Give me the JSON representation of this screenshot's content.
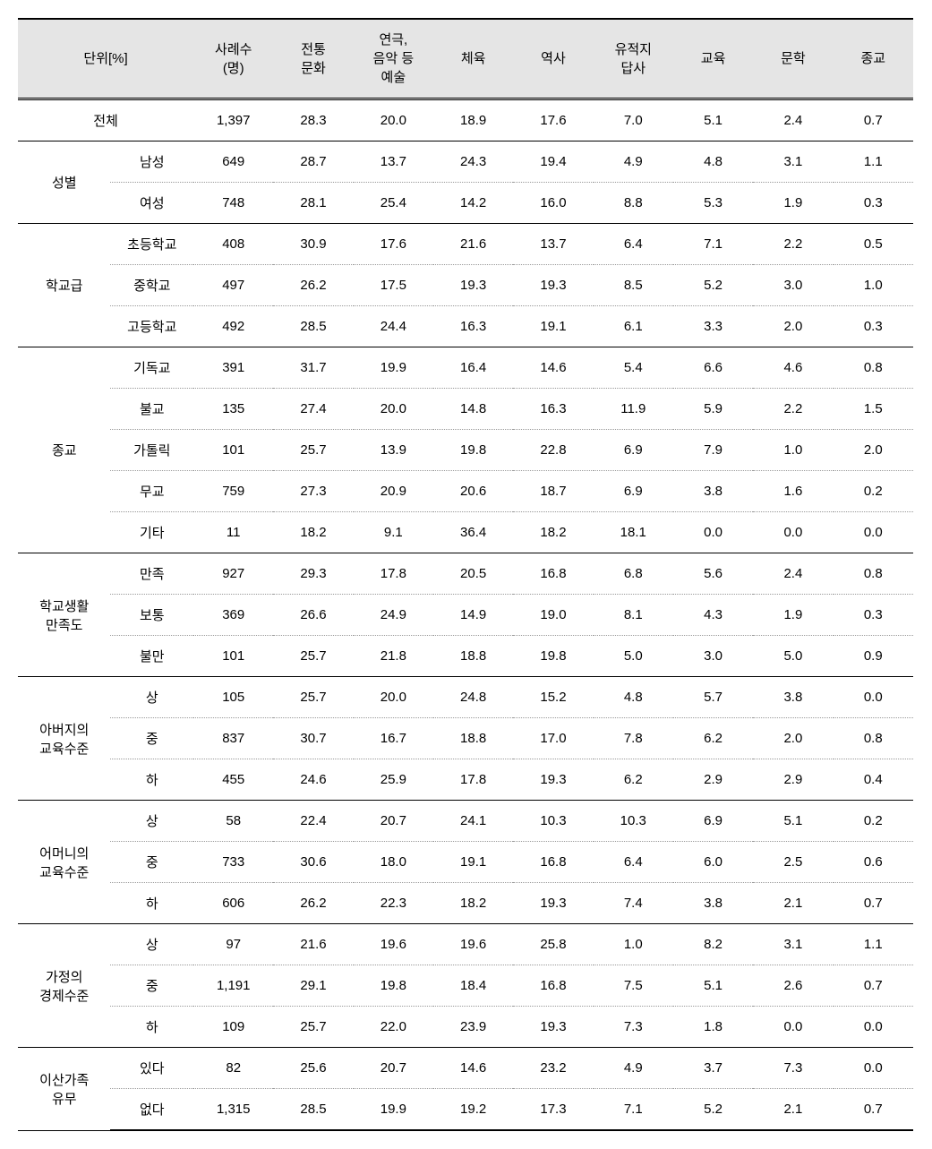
{
  "header": {
    "corner": "단위[%]",
    "cols": [
      "사례수\n(명)",
      "전통\n문화",
      "연극,\n음악 등\n예술",
      "체육",
      "역사",
      "유적지\n답사",
      "교육",
      "문학",
      "종교"
    ]
  },
  "total": {
    "label": "전체",
    "values": [
      "1,397",
      "28.3",
      "20.0",
      "18.9",
      "17.6",
      "7.0",
      "5.1",
      "2.4",
      "0.7"
    ]
  },
  "groups": [
    {
      "label": "성별",
      "rows": [
        {
          "label": "남성",
          "values": [
            "649",
            "28.7",
            "13.7",
            "24.3",
            "19.4",
            "4.9",
            "4.8",
            "3.1",
            "1.1"
          ]
        },
        {
          "label": "여성",
          "values": [
            "748",
            "28.1",
            "25.4",
            "14.2",
            "16.0",
            "8.8",
            "5.3",
            "1.9",
            "0.3"
          ]
        }
      ]
    },
    {
      "label": "학교급",
      "rows": [
        {
          "label": "초등학교",
          "values": [
            "408",
            "30.9",
            "17.6",
            "21.6",
            "13.7",
            "6.4",
            "7.1",
            "2.2",
            "0.5"
          ]
        },
        {
          "label": "중학교",
          "values": [
            "497",
            "26.2",
            "17.5",
            "19.3",
            "19.3",
            "8.5",
            "5.2",
            "3.0",
            "1.0"
          ]
        },
        {
          "label": "고등학교",
          "values": [
            "492",
            "28.5",
            "24.4",
            "16.3",
            "19.1",
            "6.1",
            "3.3",
            "2.0",
            "0.3"
          ]
        }
      ]
    },
    {
      "label": "종교",
      "rows": [
        {
          "label": "기독교",
          "values": [
            "391",
            "31.7",
            "19.9",
            "16.4",
            "14.6",
            "5.4",
            "6.6",
            "4.6",
            "0.8"
          ]
        },
        {
          "label": "불교",
          "values": [
            "135",
            "27.4",
            "20.0",
            "14.8",
            "16.3",
            "11.9",
            "5.9",
            "2.2",
            "1.5"
          ]
        },
        {
          "label": "가톨릭",
          "values": [
            "101",
            "25.7",
            "13.9",
            "19.8",
            "22.8",
            "6.9",
            "7.9",
            "1.0",
            "2.0"
          ]
        },
        {
          "label": "무교",
          "values": [
            "759",
            "27.3",
            "20.9",
            "20.6",
            "18.7",
            "6.9",
            "3.8",
            "1.6",
            "0.2"
          ]
        },
        {
          "label": "기타",
          "values": [
            "11",
            "18.2",
            "9.1",
            "36.4",
            "18.2",
            "18.1",
            "0.0",
            "0.0",
            "0.0"
          ]
        }
      ]
    },
    {
      "label": "학교생활\n만족도",
      "rows": [
        {
          "label": "만족",
          "values": [
            "927",
            "29.3",
            "17.8",
            "20.5",
            "16.8",
            "6.8",
            "5.6",
            "2.4",
            "0.8"
          ]
        },
        {
          "label": "보통",
          "values": [
            "369",
            "26.6",
            "24.9",
            "14.9",
            "19.0",
            "8.1",
            "4.3",
            "1.9",
            "0.3"
          ]
        },
        {
          "label": "불만",
          "values": [
            "101",
            "25.7",
            "21.8",
            "18.8",
            "19.8",
            "5.0",
            "3.0",
            "5.0",
            "0.9"
          ]
        }
      ]
    },
    {
      "label": "아버지의\n교육수준",
      "rows": [
        {
          "label": "상",
          "values": [
            "105",
            "25.7",
            "20.0",
            "24.8",
            "15.2",
            "4.8",
            "5.7",
            "3.8",
            "0.0"
          ]
        },
        {
          "label": "중",
          "values": [
            "837",
            "30.7",
            "16.7",
            "18.8",
            "17.0",
            "7.8",
            "6.2",
            "2.0",
            "0.8"
          ]
        },
        {
          "label": "하",
          "values": [
            "455",
            "24.6",
            "25.9",
            "17.8",
            "19.3",
            "6.2",
            "2.9",
            "2.9",
            "0.4"
          ]
        }
      ]
    },
    {
      "label": "어머니의\n교육수준",
      "rows": [
        {
          "label": "상",
          "values": [
            "58",
            "22.4",
            "20.7",
            "24.1",
            "10.3",
            "10.3",
            "6.9",
            "5.1",
            "0.2"
          ]
        },
        {
          "label": "중",
          "values": [
            "733",
            "30.6",
            "18.0",
            "19.1",
            "16.8",
            "6.4",
            "6.0",
            "2.5",
            "0.6"
          ]
        },
        {
          "label": "하",
          "values": [
            "606",
            "26.2",
            "22.3",
            "18.2",
            "19.3",
            "7.4",
            "3.8",
            "2.1",
            "0.7"
          ]
        }
      ]
    },
    {
      "label": "가정의\n경제수준",
      "rows": [
        {
          "label": "상",
          "values": [
            "97",
            "21.6",
            "19.6",
            "19.6",
            "25.8",
            "1.0",
            "8.2",
            "3.1",
            "1.1"
          ]
        },
        {
          "label": "중",
          "values": [
            "1,191",
            "29.1",
            "19.8",
            "18.4",
            "16.8",
            "7.5",
            "5.1",
            "2.6",
            "0.7"
          ]
        },
        {
          "label": "하",
          "values": [
            "109",
            "25.7",
            "22.0",
            "23.9",
            "19.3",
            "7.3",
            "1.8",
            "0.0",
            "0.0"
          ]
        }
      ]
    },
    {
      "label": "이산가족\n유무",
      "rows": [
        {
          "label": "있다",
          "values": [
            "82",
            "25.6",
            "20.7",
            "14.6",
            "23.2",
            "4.9",
            "3.7",
            "7.3",
            "0.0"
          ]
        },
        {
          "label": "없다",
          "values": [
            "1,315",
            "28.5",
            "19.9",
            "19.2",
            "17.3",
            "7.1",
            "5.2",
            "2.1",
            "0.7"
          ]
        }
      ]
    }
  ]
}
